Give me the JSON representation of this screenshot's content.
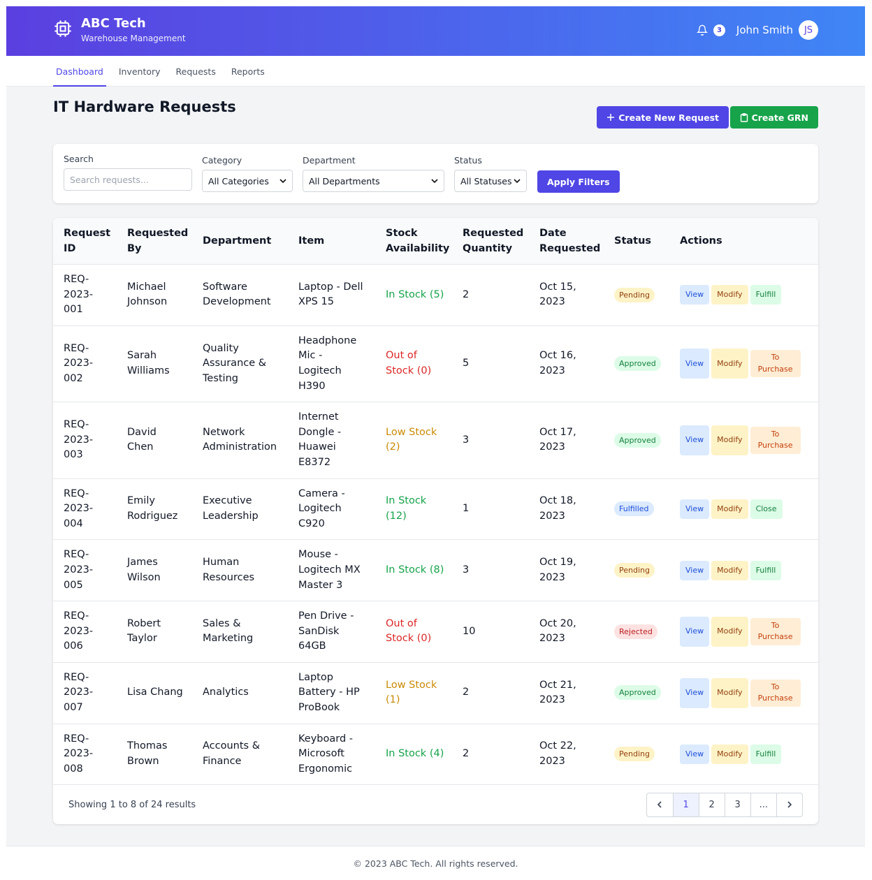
{
  "header": {
    "brand": "ABC Tech",
    "subtitle": "Warehouse Management",
    "notifications": "3",
    "user": "John Smith",
    "initials": "JS"
  },
  "nav": [
    "Dashboard",
    "Inventory",
    "Requests",
    "Reports"
  ],
  "page": {
    "title": "IT Hardware Requests",
    "create_request": "Create New Request",
    "create_grn": "Create GRN"
  },
  "filters": {
    "search_label": "Search",
    "search_placeholder": "Search requests...",
    "category_label": "Category",
    "category": "All Categories",
    "department_label": "Department",
    "department": "All Departments",
    "status_label": "Status",
    "status": "All Statuses",
    "apply": "Apply Filters"
  },
  "table": {
    "columns": [
      "Request ID",
      "Requested By",
      "Department",
      "Item",
      "Stock Availability",
      "Requested Quantity",
      "Date Requested",
      "Status",
      "Actions"
    ],
    "rows": [
      {
        "id": "REQ-2023-001",
        "requested_by": "Michael Johnson",
        "department": "Software Development",
        "item": "Laptop - Dell XPS 15",
        "stock": "In Stock (5)",
        "stock_tone": "green",
        "quantity": 2,
        "date": "Oct 15, 2023",
        "status": "Pending",
        "status_tone": "amber",
        "actions": [
          {
            "label": "View",
            "tone": "blue"
          },
          {
            "label": "Modify",
            "tone": "amber"
          },
          {
            "label": "Fulfill",
            "tone": "green"
          }
        ]
      },
      {
        "id": "REQ-2023-002",
        "requested_by": "Sarah Williams",
        "department": "Quality Assurance & Testing",
        "item": "Headphone Mic - Logitech H390",
        "stock": "Out of Stock (0)",
        "stock_tone": "red",
        "quantity": 5,
        "date": "Oct 16, 2023",
        "status": "Approved",
        "status_tone": "green",
        "actions": [
          {
            "label": "View",
            "tone": "blue"
          },
          {
            "label": "Modify",
            "tone": "amber"
          },
          {
            "label": "To Purchase",
            "tone": "orange"
          }
        ]
      },
      {
        "id": "REQ-2023-003",
        "requested_by": "David Chen",
        "department": "Network Administration",
        "item": "Internet Dongle - Huawei E8372",
        "stock": "Low Stock (2)",
        "stock_tone": "amber",
        "quantity": 3,
        "date": "Oct 17, 2023",
        "status": "Approved",
        "status_tone": "green",
        "actions": [
          {
            "label": "View",
            "tone": "blue"
          },
          {
            "label": "Modify",
            "tone": "amber"
          },
          {
            "label": "To Purchase",
            "tone": "orange"
          }
        ]
      },
      {
        "id": "REQ-2023-004",
        "requested_by": "Emily Rodriguez",
        "department": "Executive Leadership",
        "item": "Camera - Logitech C920",
        "stock": "In Stock (12)",
        "stock_tone": "green",
        "quantity": 1,
        "date": "Oct 18, 2023",
        "status": "Fulfilled",
        "status_tone": "blue",
        "actions": [
          {
            "label": "View",
            "tone": "blue"
          },
          {
            "label": "Modify",
            "tone": "amber"
          },
          {
            "label": "Close",
            "tone": "green"
          }
        ]
      },
      {
        "id": "REQ-2023-005",
        "requested_by": "James Wilson",
        "department": "Human Resources",
        "item": "Mouse - Logitech MX Master 3",
        "stock": "In Stock (8)",
        "stock_tone": "green",
        "quantity": 3,
        "date": "Oct 19, 2023",
        "status": "Pending",
        "status_tone": "amber",
        "actions": [
          {
            "label": "View",
            "tone": "blue"
          },
          {
            "label": "Modify",
            "tone": "amber"
          },
          {
            "label": "Fulfill",
            "tone": "green"
          }
        ]
      },
      {
        "id": "REQ-2023-006",
        "requested_by": "Robert Taylor",
        "department": "Sales & Marketing",
        "item": "Pen Drive - SanDisk 64GB",
        "stock": "Out of Stock (0)",
        "stock_tone": "red",
        "quantity": 10,
        "date": "Oct 20, 2023",
        "status": "Rejected",
        "status_tone": "red",
        "actions": [
          {
            "label": "View",
            "tone": "blue"
          },
          {
            "label": "Modify",
            "tone": "amber"
          },
          {
            "label": "To Purchase",
            "tone": "orange"
          }
        ]
      },
      {
        "id": "REQ-2023-007",
        "requested_by": "Lisa Chang",
        "department": "Analytics",
        "item": "Laptop Battery - HP ProBook",
        "stock": "Low Stock (1)",
        "stock_tone": "amber",
        "quantity": 2,
        "date": "Oct 21, 2023",
        "status": "Approved",
        "status_tone": "green",
        "actions": [
          {
            "label": "View",
            "tone": "blue"
          },
          {
            "label": "Modify",
            "tone": "amber"
          },
          {
            "label": "To Purchase",
            "tone": "orange"
          }
        ]
      },
      {
        "id": "REQ-2023-008",
        "requested_by": "Thomas Brown",
        "department": "Accounts & Finance",
        "item": "Keyboard - Microsoft Ergonomic",
        "stock": "In Stock (4)",
        "stock_tone": "green",
        "quantity": 2,
        "date": "Oct 22, 2023",
        "status": "Pending",
        "status_tone": "amber",
        "actions": [
          {
            "label": "View",
            "tone": "blue"
          },
          {
            "label": "Modify",
            "tone": "amber"
          },
          {
            "label": "Fulfill",
            "tone": "green"
          }
        ]
      }
    ]
  },
  "pagination": {
    "summary": "Showing 1 to 8 of 24 results",
    "pages": [
      "1",
      "2",
      "3",
      "..."
    ]
  },
  "footer": "© 2023 ABC Tech. All rights reserved."
}
